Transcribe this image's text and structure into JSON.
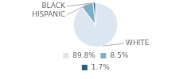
{
  "chart_data": {
    "type": "pie",
    "categories": [
      "WHITE",
      "HISPANIC",
      "BLACK"
    ],
    "values": [
      89.8,
      8.5,
      1.7
    ],
    "value_labels": [
      "89.8%",
      "8.5%",
      "1.7%"
    ],
    "colors": [
      "#dce6f1",
      "#7fadc8",
      "#2e5f7a"
    ],
    "legend": "bottom"
  }
}
